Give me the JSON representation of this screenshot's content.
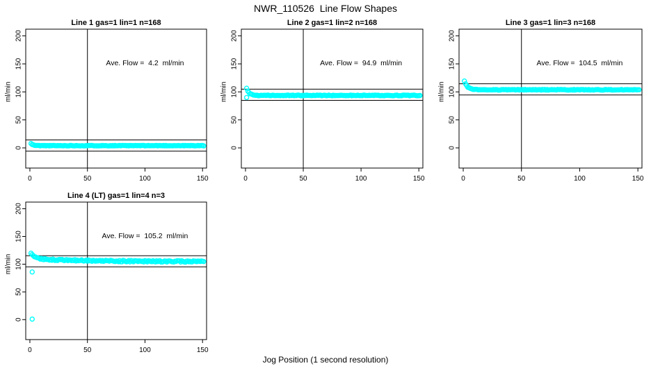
{
  "page_title": "NWR_110526  Line Flow Shapes",
  "x_axis_label": "Jog Position (1 second resolution)",
  "colors": {
    "points": "#00FFFF",
    "axis": "#000000",
    "background": "#FFFFFF"
  },
  "chart_data": [
    {
      "type": "scatter",
      "title": "Line 1 gas=1 lin=1 n=168",
      "annotation": "Ave. Flow =  4.2  ml/min",
      "ave_flow_ml_min": 4.2,
      "n_points": 168,
      "ylabel": "ml/min",
      "xticks": [
        0,
        50,
        100,
        150
      ],
      "yticks": [
        0,
        50,
        100,
        150,
        200
      ],
      "xlim": [
        -3.6,
        153.5
      ],
      "ylim": [
        -36,
        212
      ],
      "vline_x": 50,
      "hlines": [
        14.2,
        -5.8
      ],
      "marker": "open-circle",
      "series": {
        "x_start": 1,
        "x_end": 151,
        "settle": 4.0,
        "amp1": 3.8,
        "tau1": 1.8,
        "amp2": 0,
        "tau2": 1,
        "noise": 0.45,
        "seed": 11
      },
      "outliers": []
    },
    {
      "type": "scatter",
      "title": "Line 2 gas=1 lin=2 n=168",
      "annotation": "Ave. Flow =  94.9  ml/min",
      "ave_flow_ml_min": 94.9,
      "n_points": 168,
      "ylabel": "ml/min",
      "xticks": [
        0,
        50,
        100,
        150
      ],
      "yticks": [
        0,
        50,
        100,
        150,
        200
      ],
      "xlim": [
        -3.6,
        153.5
      ],
      "ylim": [
        -36,
        212
      ],
      "vline_x": 50,
      "hlines": [
        104.9,
        84.9
      ],
      "marker": "open-circle",
      "series": {
        "x_start": 1,
        "x_end": 151,
        "settle": 93.7,
        "amp1": 13,
        "tau1": 2.2,
        "amp2": 0,
        "tau2": 1,
        "noise": 0.6,
        "seed": 22
      },
      "outliers": [
        [
          1,
          90
        ]
      ]
    },
    {
      "type": "scatter",
      "title": "Line 3 gas=1 lin=3 n=168",
      "annotation": "Ave. Flow =  104.5  ml/min",
      "ave_flow_ml_min": 104.5,
      "n_points": 168,
      "ylabel": "ml/min",
      "xticks": [
        0,
        50,
        100,
        150
      ],
      "yticks": [
        0,
        50,
        100,
        150,
        200
      ],
      "xlim": [
        -3.6,
        153.5
      ],
      "ylim": [
        -36,
        212
      ],
      "vline_x": 50,
      "hlines": [
        114.5,
        94.5
      ],
      "marker": "open-circle",
      "series": {
        "x_start": 1,
        "x_end": 151,
        "settle": 103.8,
        "amp1": 15,
        "tau1": 2.6,
        "amp2": 0,
        "tau2": 1,
        "noise": 0.6,
        "seed": 33
      },
      "outliers": []
    },
    {
      "type": "scatter",
      "title": "Line 4 (LT) gas=1 lin=4 n=3",
      "annotation": "Ave. Flow =  105.2  ml/min",
      "ave_flow_ml_min": 105.2,
      "n_points": 3,
      "ylabel": "ml/min",
      "xticks": [
        0,
        50,
        100,
        150
      ],
      "yticks": [
        0,
        50,
        100,
        150,
        200
      ],
      "xlim": [
        -3.6,
        153.5
      ],
      "ylim": [
        -36,
        212
      ],
      "vline_x": 50,
      "hlines": [
        115.2,
        95.2
      ],
      "marker": "open-circle",
      "series": {
        "x_start": 1,
        "x_end": 151,
        "settle": 104.6,
        "amp1": 9.5,
        "tau1": 3.5,
        "amp2": 5.5,
        "tau2": 45,
        "noise": 1.25,
        "seed": 44
      },
      "outliers": [
        [
          2,
          86
        ],
        [
          2,
          1
        ]
      ]
    }
  ]
}
